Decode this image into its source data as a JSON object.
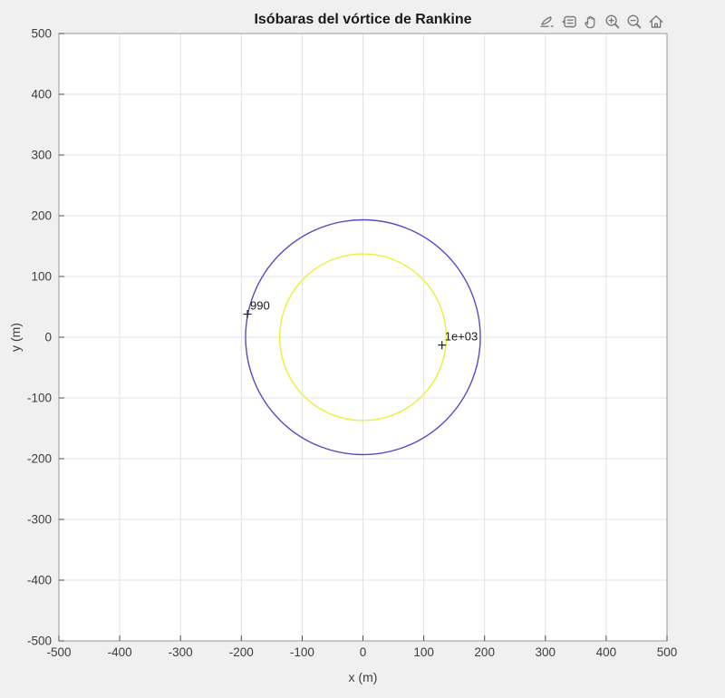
{
  "figure": {
    "background": "#f0f0f0"
  },
  "toolbar": {
    "icons": [
      "edit-plot-icon",
      "datatips-icon",
      "pan-icon",
      "zoom-in-icon",
      "zoom-out-icon",
      "home-icon"
    ]
  },
  "chart_data": {
    "type": "contour",
    "title": "Isóbaras del vórtice de Rankine",
    "xlabel": "x (m)",
    "ylabel": "y (m)",
    "xlim": [
      -500,
      500
    ],
    "ylim": [
      -500,
      500
    ],
    "xticks": [
      -500,
      -400,
      -300,
      -200,
      -100,
      0,
      100,
      200,
      300,
      400,
      500
    ],
    "yticks": [
      -500,
      -400,
      -300,
      -200,
      -100,
      0,
      100,
      200,
      300,
      400,
      500
    ],
    "grid": true,
    "legend": false,
    "contours": [
      {
        "level": 990,
        "label": "990",
        "shape": "circle",
        "center": [
          0,
          0
        ],
        "radius": 193,
        "color": "#554bc6",
        "label_point": [
          -190,
          38
        ]
      },
      {
        "level": 1000,
        "label": "1e+03",
        "shape": "circle",
        "center": [
          0,
          0
        ],
        "radius": 137,
        "color": "#f1ec35",
        "label_point": [
          130,
          -13
        ]
      }
    ]
  },
  "colors": {
    "figure_bg": "#f0f0f0",
    "plot_bg": "#ffffff",
    "grid": "#e3e3e3",
    "axis_box": "#999999",
    "tick": "#4d4d4d",
    "tick_label": "#3d3d3d",
    "title": "#1a1a1a",
    "contour_label": "#1a1a1a",
    "toolbar_icon": "#7b7b7b"
  }
}
